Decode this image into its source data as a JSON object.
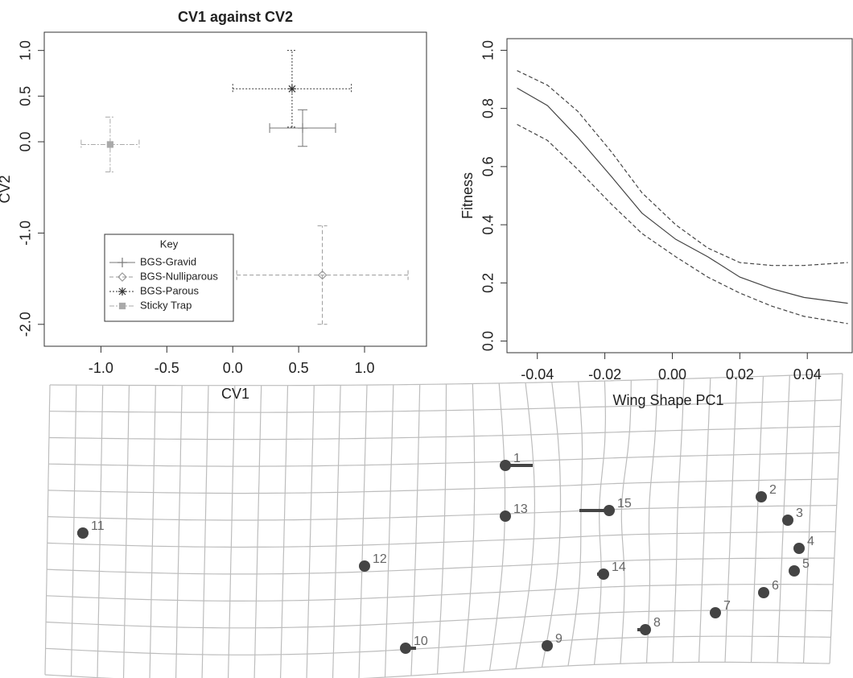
{
  "chart_data": [
    {
      "type": "scatter",
      "title": "CV1 against CV2",
      "x_label": "CV1",
      "y_label": "CV2",
      "xlim": [
        -1.43,
        1.47
      ],
      "ylim": [
        -2.24,
        1.2
      ],
      "xticks": [
        {
          "value": -1,
          "label": "-1.0"
        },
        -0.5,
        {
          "value": 0,
          "label": "0.0"
        },
        0.5,
        {
          "value": 1,
          "label": "1.0"
        }
      ],
      "yticks": [
        {
          "value": -2,
          "label": "-2.0"
        },
        {
          "value": -1,
          "label": "-1.0"
        },
        {
          "value": 0,
          "label": "0.0"
        },
        0.5,
        {
          "value": 1,
          "label": "1.0"
        }
      ],
      "legend_title": "Key",
      "legend_position": "lower left",
      "series": [
        {
          "name": "BGS-Gravid",
          "color": "#777777",
          "line_style": "solid",
          "marker": "plus",
          "x": [
            0.53
          ],
          "values": [
            0.15
          ],
          "xerr": [
            0.25
          ],
          "yerr": [
            0.2
          ]
        },
        {
          "name": "BGS-Nulliparous",
          "color": "#999999",
          "line_style": "dashed",
          "marker": "diamond",
          "x": [
            0.68
          ],
          "values": [
            -1.46
          ],
          "xerr": [
            0.65
          ],
          "yerr": [
            0.54
          ]
        },
        {
          "name": "BGS-Parous",
          "color": "#333333",
          "line_style": "dotted",
          "marker": "star",
          "x": [
            0.45
          ],
          "values": [
            0.58
          ],
          "xerr": [
            0.45
          ],
          "yerr": [
            0.42
          ]
        },
        {
          "name": "Sticky Trap",
          "color": "#aaaaaa",
          "line_style": "dashdot",
          "marker": "square",
          "x": [
            -0.93
          ],
          "values": [
            -0.03
          ],
          "xerr": [
            0.22
          ],
          "yerr": [
            0.3
          ]
        }
      ]
    },
    {
      "type": "line",
      "x_label": "Wing Shape PC1",
      "y_label": "Fitness",
      "xlim": [
        -0.049,
        0.0533
      ],
      "ylim": [
        -0.04,
        1.04
      ],
      "xticks": [
        -0.04,
        -0.02,
        {
          "value": 0,
          "label": "0.00"
        },
        0.02,
        0.04
      ],
      "yticks": [
        {
          "value": 0,
          "label": "0.0"
        },
        0.2,
        0.4,
        0.6,
        0.8,
        {
          "value": 1,
          "label": "1.0"
        }
      ],
      "x": [
        -0.046,
        -0.037,
        -0.028,
        -0.018,
        -0.009,
        0.001,
        0.0105,
        0.02,
        0.0295,
        0.039,
        0.052
      ],
      "series": [
        {
          "color": "#444444",
          "line_style": "solid",
          "values": [
            0.87,
            0.81,
            0.7,
            0.565,
            0.44,
            0.35,
            0.29,
            0.22,
            0.18,
            0.15,
            0.13
          ]
        },
        {
          "color": "#444444",
          "line_style": "dashed",
          "values": [
            0.93,
            0.88,
            0.79,
            0.65,
            0.51,
            0.4,
            0.32,
            0.27,
            0.26,
            0.26,
            0.27
          ]
        },
        {
          "color": "#444444",
          "line_style": "dashed",
          "values": [
            0.745,
            0.69,
            0.59,
            0.47,
            0.37,
            0.29,
            0.22,
            0.165,
            0.12,
            0.085,
            0.06
          ]
        }
      ]
    }
  ],
  "deformation_grid": {
    "landmark_labels": [
      "1",
      "2",
      "3",
      "4",
      "5",
      "6",
      "7",
      "8",
      "9",
      "10",
      "11",
      "12",
      "13",
      "14",
      "15"
    ]
  }
}
